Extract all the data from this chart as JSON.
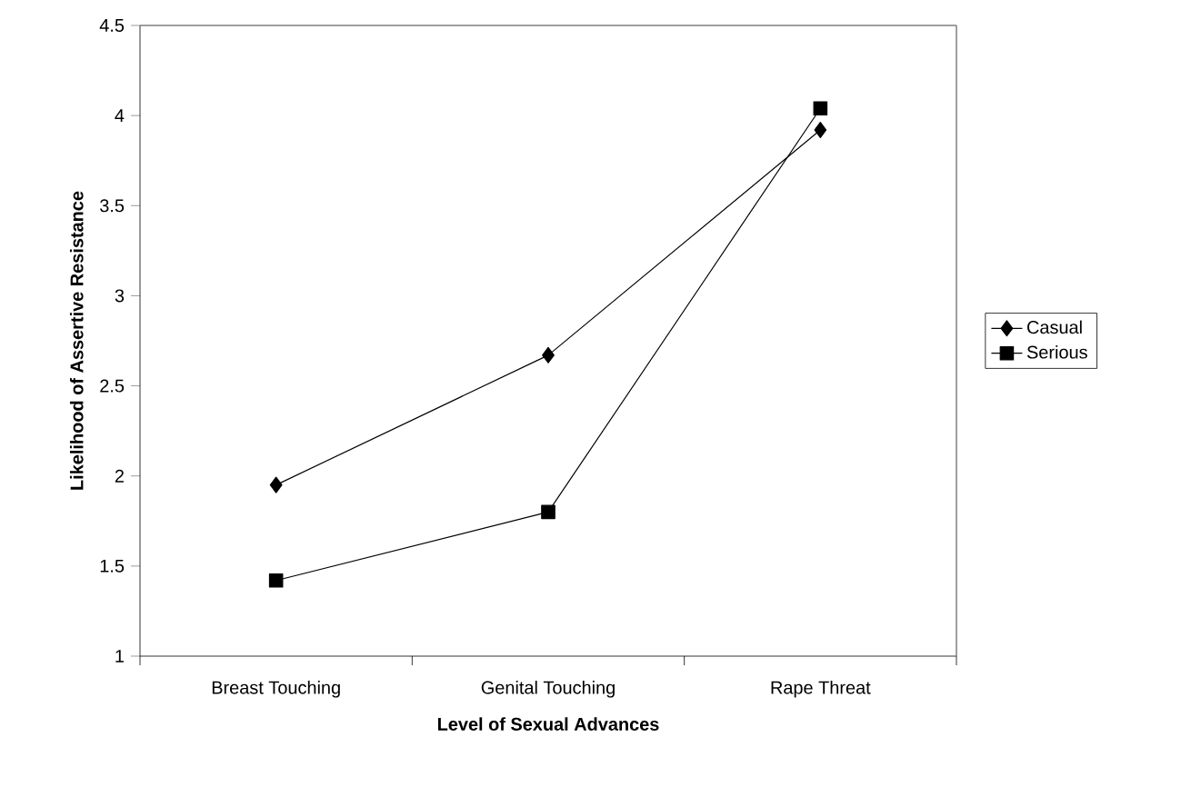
{
  "chart_data": {
    "type": "line",
    "xlabel": "Level of Sexual Advances",
    "ylabel": "Likelihood of Assertive Resistance",
    "categories": [
      "Breast Touching",
      "Genital Touching",
      "Rape Threat"
    ],
    "series": [
      {
        "name": "Casual",
        "color": "#000000",
        "marker": "diamond",
        "values": [
          1.95,
          2.67,
          3.92
        ]
      },
      {
        "name": "Serious",
        "color": "#000000",
        "marker": "square",
        "values": [
          1.42,
          1.8,
          4.04
        ]
      }
    ],
    "ylim": [
      1,
      4.5
    ],
    "yticks": [
      1,
      1.5,
      2,
      2.5,
      3,
      3.5,
      4,
      4.5
    ],
    "grid": false,
    "legend": "right",
    "line_style": "solid"
  }
}
